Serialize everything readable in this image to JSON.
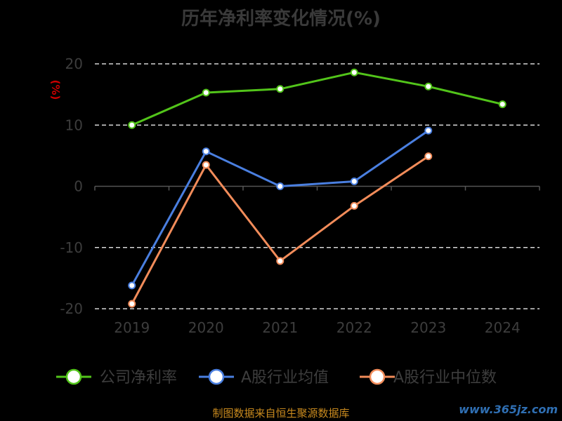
{
  "chart_data": {
    "type": "line",
    "title": "历年净利率变化情况(%)",
    "ylabel": "(%)",
    "x": [
      "2019",
      "2020",
      "2021",
      "2022",
      "2023",
      "2024"
    ],
    "ylim": [
      -20,
      20
    ],
    "yticks": [
      20,
      10,
      0,
      -10,
      -20
    ],
    "grid": true,
    "legend_position": "bottom",
    "series": [
      {
        "name": "公司净利率",
        "color": "#52c41a",
        "values": [
          10.0,
          15.3,
          15.9,
          18.6,
          16.3,
          13.4
        ]
      },
      {
        "name": "A股行业均值",
        "color": "#4a7fe0",
        "values": [
          -16.2,
          5.7,
          0.0,
          0.8,
          9.1,
          null
        ]
      },
      {
        "name": "A股行业中位数",
        "color": "#f28c5a",
        "values": [
          -19.2,
          3.5,
          -12.2,
          -3.2,
          4.9,
          null
        ]
      }
    ]
  },
  "footer": "制图数据来自恒生聚源数据库",
  "watermark": "www.365jz.com",
  "colors": {
    "background": "#000000",
    "grid": "#ffffff",
    "axis": "#555555",
    "ylabel": "#cc0000"
  }
}
